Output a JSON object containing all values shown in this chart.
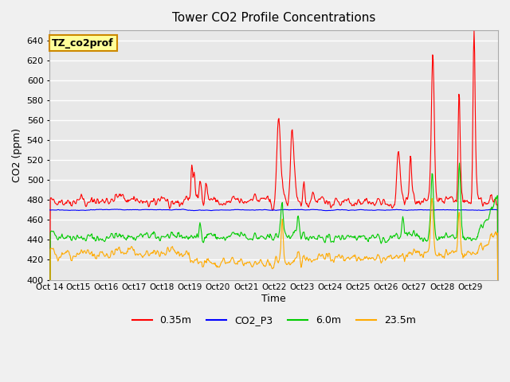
{
  "title": "Tower CO2 Profile Concentrations",
  "xlabel": "Time",
  "ylabel": "CO2 (ppm)",
  "ylim": [
    400,
    650
  ],
  "yticks": [
    400,
    420,
    440,
    460,
    480,
    500,
    520,
    540,
    560,
    580,
    600,
    620,
    640
  ],
  "plot_bg_color": "#e8e8e8",
  "fig_bg_color": "#f0f0f0",
  "grid_color": "#ffffff",
  "line_colors": {
    "0.35m": "#ff0000",
    "CO2_P3": "#0000ff",
    "6.0m": "#00cc00",
    "23.5m": "#ffaa00"
  },
  "legend_label": "TZ_co2prof",
  "legend_bg": "#ffff99",
  "legend_border": "#cc8800",
  "x_tick_labels": [
    "Oct 14",
    "Oct 15",
    "Oct 16",
    "Oct 17",
    "Oct 18",
    "Oct 19",
    "Oct 20",
    "Oct 21",
    "Oct 22",
    "Oct 23",
    "Oct 24",
    "Oct 25",
    "Oct 26",
    "Oct 27",
    "Oct 28",
    "Oct 29"
  ],
  "n_days": 16,
  "points_per_day": 48
}
